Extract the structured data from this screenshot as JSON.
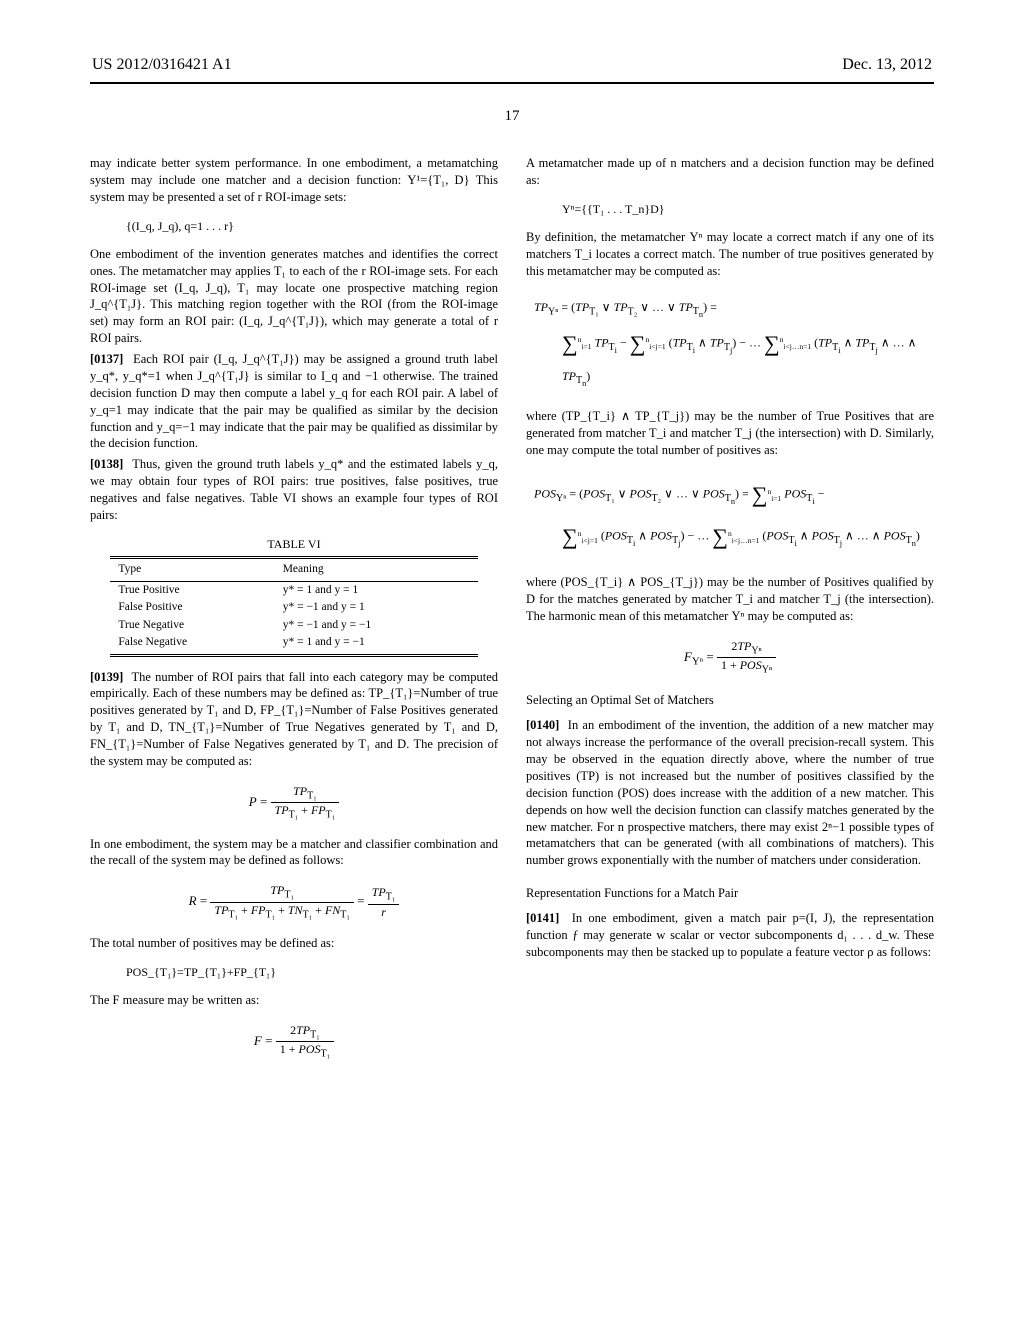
{
  "header": {
    "left": "US 2012/0316421 A1",
    "right": "Dec. 13, 2012"
  },
  "page_number": "17",
  "left_column": {
    "p1": "may indicate better system performance. In one embodiment, a metamatching system may include one matcher and a decision function: Υ¹={T₁, D} This system may be presented a set of r ROI-image sets:",
    "f1": "{(I_q, J_q), q=1 . . . r}",
    "p2": "One embodiment of the invention generates matches and identifies the correct ones. The metamatcher may applies T₁ to each of the r ROI-image sets. For each ROI-image set (I_q, J_q), T₁ may locate one prospective matching region J_q^{T₁J}. This matching region together with the ROI (from the ROI-image set) may form an ROI pair: (I_q, J_q^{T₁J}), which may generate a total of r ROI pairs.",
    "p3_num": "[0137]",
    "p3": "Each ROI pair (I_q, J_q^{T₁J}) may be assigned a ground truth label y_q*, y_q*=1 when J_q^{T₁J} is similar to I_q and −1 otherwise. The trained decision function D may then compute a label y_q for each ROI pair. A label of y_q=1 may indicate that the pair may be qualified as similar by the decision function and y_q=−1 may indicate that the pair may be qualified as dissimilar by the decision function.",
    "p4_num": "[0138]",
    "p4": "Thus, given the ground truth labels y_q* and the estimated labels y_q, we may obtain four types of ROI pairs: true positives, false positives, true negatives and false negatives. Table VI shows an example four types of ROI pairs:",
    "table6": {
      "caption": "TABLE VI",
      "columns": [
        "Type",
        "Meaning"
      ],
      "rows": [
        [
          "True Positive",
          "y* = 1 and y = 1"
        ],
        [
          "False Positive",
          "y* = −1 and y = 1"
        ],
        [
          "True Negative",
          "y* = −1 and y = −1"
        ],
        [
          "False Negative",
          "y* = 1 and y = −1"
        ]
      ]
    },
    "p5_num": "[0139]",
    "p5": "The number of ROI pairs that fall into each category may be computed empirically. Each of these numbers may be defined as: TP_{T₁}=Number of true positives generated by T₁ and D, FP_{T₁}=Number of False Positives generated by T₁ and D, TN_{T₁}=Number of True Negatives generated by T₁ and D, FN_{T₁}=Number of False Negatives generated by T₁ and D. The precision of the system may be computed as:",
    "p6": "In one embodiment, the system may be a matcher and classifier combination and the recall of the system may be defined as follows:",
    "p7": "The total number of positives may be defined as:",
    "f_pos": "POS_{T₁}=TP_{T₁}+FP_{T₁}",
    "p8": "The F measure may be written as:"
  },
  "right_column": {
    "p1": "A metamatcher made up of n matchers and a decision function may be defined as:",
    "f1": "Υⁿ={{T₁ . . . T_n}D}",
    "p2": "By definition, the metamatcher Υⁿ may locate a correct match if any one of its matchers T_i locates a correct match. The number of true positives generated by this metamatcher may be computed as:",
    "p3": "where (TP_{T_i} ∧ TP_{T_j}) may be the number of True Positives that are generated from matcher T_i and matcher T_j (the intersection) with D. Similarly, one may compute the total number of positives as:",
    "p4": "where (POS_{T_i} ∧ POS_{T_j}) may be the number of Positives qualified by D for the matches generated by matcher T_i and matcher T_j (the intersection). The harmonic mean of this metamatcher Υⁿ may be computed as:",
    "s1": "Selecting an Optimal Set of Matchers",
    "p5_num": "[0140]",
    "p5": "In an embodiment of the invention, the addition of a new matcher may not always increase the performance of the overall precision-recall system. This may be observed in the equation directly above, where the number of true positives (TP) is not increased but the number of positives classified by the decision function (POS) does increase with the addition of a new matcher. This depends on how well the decision function can classify matches generated by the new matcher. For n prospective matchers, there may exist 2ⁿ−1 possible types of metamatchers that can be generated (with all combinations of matchers). This number grows exponentially with the number of matchers under consideration.",
    "s2": "Representation Functions for a Match Pair",
    "p6_num": "[0141]",
    "p6": "In one embodiment, given a match pair p=(I, J), the representation function ƒ may generate w scalar or vector subcomponents d₁ . . . d_w. These subcomponents may then be stacked up to populate a feature vector ρ as follows:"
  }
}
